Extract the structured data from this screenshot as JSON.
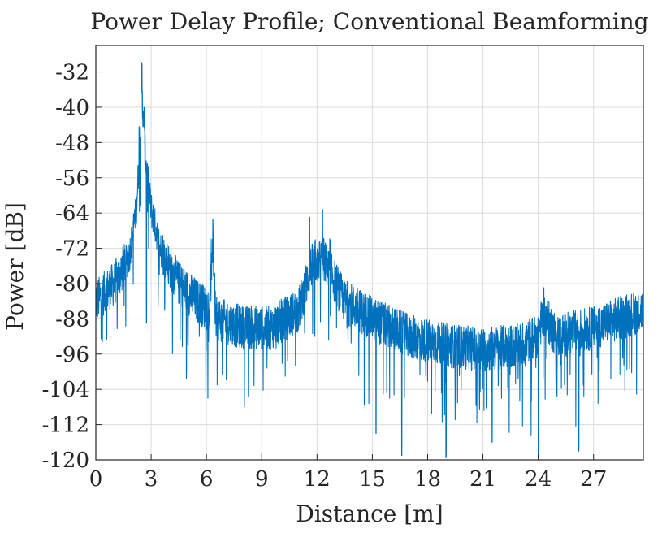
{
  "chart_data": {
    "type": "line",
    "title": "Power Delay Profile; Conventional Beamforming",
    "xlabel": "Distance [m]",
    "ylabel": "Power [dB]",
    "xlim": [
      0,
      29.7
    ],
    "ylim": [
      -120,
      -26
    ],
    "x_ticks": [
      0,
      3,
      6,
      9,
      12,
      15,
      18,
      21,
      24,
      27
    ],
    "y_ticks": [
      -32,
      -40,
      -48,
      -56,
      -64,
      -72,
      -80,
      -88,
      -96,
      -104,
      -112,
      -120
    ],
    "grid": true,
    "series_color": "#0072BD",
    "series": [
      {
        "x_start": 0,
        "x_end": 29.7,
        "baseline_db": [
          [
            0,
            -84
          ],
          [
            1,
            -80
          ],
          [
            1.8,
            -74
          ],
          [
            2.2,
            -63
          ],
          [
            2.35,
            -52
          ],
          [
            2.45,
            -42
          ],
          [
            2.5,
            -31
          ],
          [
            2.55,
            -42
          ],
          [
            2.7,
            -52
          ],
          [
            3,
            -63
          ],
          [
            3.5,
            -72
          ],
          [
            4.5,
            -80
          ],
          [
            5.5,
            -84
          ],
          [
            6.2,
            -86
          ],
          [
            6.35,
            -70
          ],
          [
            6.5,
            -88
          ],
          [
            8,
            -90
          ],
          [
            9.5,
            -90
          ],
          [
            11,
            -86
          ],
          [
            11.7,
            -76
          ],
          [
            12.3,
            -74
          ],
          [
            13.5,
            -84
          ],
          [
            15,
            -88
          ],
          [
            17,
            -92
          ],
          [
            19,
            -94
          ],
          [
            21,
            -95
          ],
          [
            23,
            -94
          ],
          [
            23.9,
            -92
          ],
          [
            24.3,
            -87
          ],
          [
            25,
            -92
          ],
          [
            27,
            -90
          ],
          [
            29.7,
            -86
          ]
        ],
        "peaks": [
          {
            "x": 2.5,
            "y": -30.8
          },
          {
            "x": 2.62,
            "y": -40.5
          },
          {
            "x": 2.35,
            "y": -45.5
          },
          {
            "x": 6.35,
            "y": -66
          },
          {
            "x": 6.2,
            "y": -70
          },
          {
            "x": 11.6,
            "y": -66
          },
          {
            "x": 12.3,
            "y": -64
          },
          {
            "x": 11.9,
            "y": -71
          },
          {
            "x": 12.7,
            "y": -71
          },
          {
            "x": 24.3,
            "y": -82
          }
        ],
        "dips": [
          {
            "x": 2.75,
            "y": -89
          },
          {
            "x": 5.0,
            "y": -94
          },
          {
            "x": 16.6,
            "y": -119
          },
          {
            "x": 19.0,
            "y": -119.5
          },
          {
            "x": 24.0,
            "y": -120
          },
          {
            "x": 26.2,
            "y": -118
          },
          {
            "x": 15.2,
            "y": -114
          },
          {
            "x": 21.5,
            "y": -116
          }
        ]
      }
    ]
  }
}
